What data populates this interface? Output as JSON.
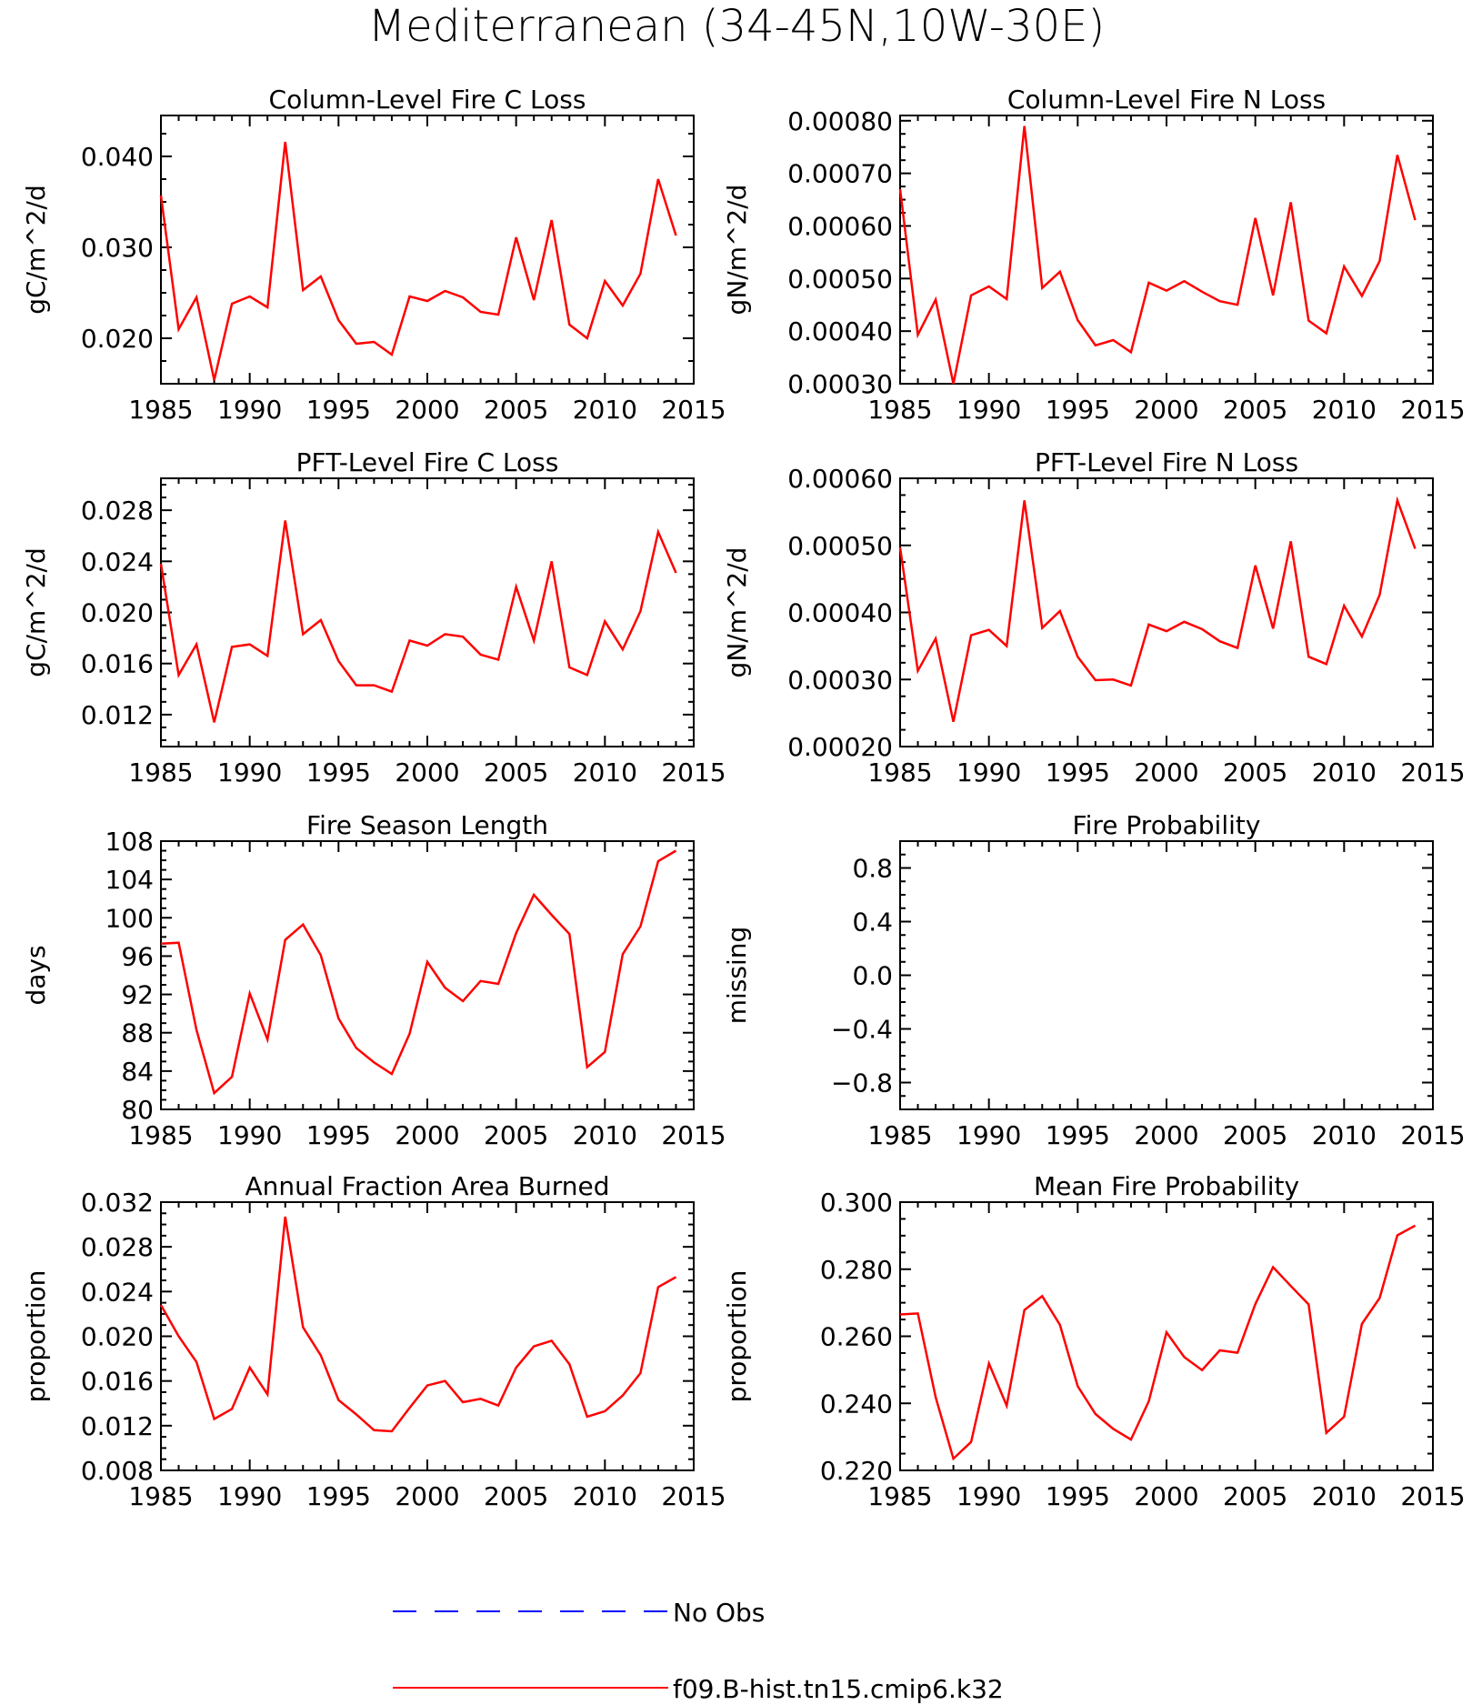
{
  "figure_title": "Mediterranean (34-45N,10W-30E)",
  "legend": [
    {
      "name": "No Obs",
      "color": "#0000ff",
      "dash": true
    },
    {
      "name": "f09.B-hist.tn15.cmip6.k32",
      "color": "#ff0000",
      "dash": false
    }
  ],
  "chart_data": [
    {
      "type": "line",
      "title": "Column-Level Fire C Loss",
      "ylabel": "gC/m^2/d",
      "xlim": [
        1985,
        2015
      ],
      "ylim": [
        0.015,
        0.0445
      ],
      "xticks": [
        1985,
        1990,
        1995,
        2000,
        2005,
        2010,
        2015
      ],
      "yticks": [
        0.02,
        0.03,
        0.04
      ],
      "ytick_labels": [
        "0.020",
        "0.030",
        "0.040"
      ],
      "series": [
        {
          "color": "#ff0000",
          "x": [
            1985,
            1986,
            1987,
            1988,
            1989,
            1990,
            1991,
            1992,
            1993,
            1994,
            1995,
            1996,
            1997,
            1998,
            1999,
            2000,
            2001,
            2002,
            2003,
            2004,
            2005,
            2006,
            2007,
            2008,
            2009,
            2010,
            2011,
            2012,
            2013,
            2014
          ],
          "values": [
            0.0357,
            0.021,
            0.0245,
            0.0154,
            0.0238,
            0.0246,
            0.0234,
            0.0416,
            0.0253,
            0.0268,
            0.022,
            0.0194,
            0.0196,
            0.0182,
            0.0246,
            0.0241,
            0.0252,
            0.0245,
            0.0229,
            0.0226,
            0.0311,
            0.0242,
            0.033,
            0.0215,
            0.02,
            0.0263,
            0.0236,
            0.0271,
            0.0375,
            0.0313
          ]
        }
      ]
    },
    {
      "type": "line",
      "title": "Column-Level Fire N Loss",
      "ylabel": "gN/m^2/d",
      "xlim": [
        1985,
        2015
      ],
      "ylim": [
        0.0003,
        0.00081
      ],
      "xticks": [
        1985,
        1990,
        1995,
        2000,
        2005,
        2010,
        2015
      ],
      "yticks": [
        0.0003,
        0.0004,
        0.0005,
        0.0006,
        0.0007,
        0.0008
      ],
      "ytick_labels": [
        "0.00030",
        "0.00040",
        "0.00050",
        "0.00060",
        "0.00070",
        "0.00080"
      ],
      "series": [
        {
          "color": "#ff0000",
          "x": [
            1985,
            1986,
            1987,
            1988,
            1989,
            1990,
            1991,
            1992,
            1993,
            1994,
            1995,
            1996,
            1997,
            1998,
            1999,
            2000,
            2001,
            2002,
            2003,
            2004,
            2005,
            2006,
            2007,
            2008,
            2009,
            2010,
            2011,
            2012,
            2013,
            2014
          ],
          "values": [
            0.00067,
            0.000393,
            0.00046,
            0.0003,
            0.000468,
            0.000485,
            0.000461,
            0.00079,
            0.000482,
            0.000513,
            0.000421,
            0.000373,
            0.000383,
            0.00036,
            0.000492,
            0.000477,
            0.000495,
            0.000475,
            0.000457,
            0.00045,
            0.000615,
            0.000468,
            0.000645,
            0.00042,
            0.000396,
            0.000523,
            0.000467,
            0.000533,
            0.000735,
            0.000611
          ]
        }
      ]
    },
    {
      "type": "line",
      "title": "PFT-Level Fire C Loss",
      "ylabel": "gC/m^2/d",
      "xlim": [
        1985,
        2015
      ],
      "ylim": [
        0.0095,
        0.0305
      ],
      "xticks": [
        1985,
        1990,
        1995,
        2000,
        2005,
        2010,
        2015
      ],
      "yticks": [
        0.012,
        0.016,
        0.02,
        0.024,
        0.028
      ],
      "ytick_labels": [
        "0.012",
        "0.016",
        "0.020",
        "0.024",
        "0.028"
      ],
      "series": [
        {
          "color": "#ff0000",
          "x": [
            1985,
            1986,
            1987,
            1988,
            1989,
            1990,
            1991,
            1992,
            1993,
            1994,
            1995,
            1996,
            1997,
            1998,
            1999,
            2000,
            2001,
            2002,
            2003,
            2004,
            2005,
            2006,
            2007,
            2008,
            2009,
            2010,
            2011,
            2012,
            2013,
            2014
          ],
          "values": [
            0.0238,
            0.0151,
            0.0175,
            0.0114,
            0.0173,
            0.0175,
            0.0166,
            0.0272,
            0.0183,
            0.0194,
            0.0162,
            0.0143,
            0.0143,
            0.0138,
            0.0178,
            0.0174,
            0.0183,
            0.0181,
            0.0167,
            0.0163,
            0.022,
            0.0178,
            0.024,
            0.0157,
            0.0151,
            0.0193,
            0.0171,
            0.0201,
            0.0263,
            0.0231
          ]
        }
      ]
    },
    {
      "type": "line",
      "title": "PFT-Level Fire N Loss",
      "ylabel": "gN/m^2/d",
      "xlim": [
        1985,
        2015
      ],
      "ylim": [
        0.0002,
        0.0006
      ],
      "xticks": [
        1985,
        1990,
        1995,
        2000,
        2005,
        2010,
        2015
      ],
      "yticks": [
        0.0002,
        0.0003,
        0.0004,
        0.0005,
        0.0006
      ],
      "ytick_labels": [
        "0.00020",
        "0.00030",
        "0.00040",
        "0.00050",
        "0.00060"
      ],
      "series": [
        {
          "color": "#ff0000",
          "x": [
            1985,
            1986,
            1987,
            1988,
            1989,
            1990,
            1991,
            1992,
            1993,
            1994,
            1995,
            1996,
            1997,
            1998,
            1999,
            2000,
            2001,
            2002,
            2003,
            2004,
            2005,
            2006,
            2007,
            2008,
            2009,
            2010,
            2011,
            2012,
            2013,
            2014
          ],
          "values": [
            0.000497,
            0.000313,
            0.000361,
            0.000237,
            0.000366,
            0.000374,
            0.00035,
            0.000567,
            0.000377,
            0.000402,
            0.000334,
            0.000299,
            0.0003,
            0.000291,
            0.000382,
            0.000372,
            0.000386,
            0.000375,
            0.000357,
            0.000347,
            0.00047,
            0.000376,
            0.000506,
            0.000334,
            0.000323,
            0.00041,
            0.000364,
            0.000426,
            0.000567,
            0.000495
          ]
        }
      ]
    },
    {
      "type": "line",
      "title": "Fire Season Length",
      "ylabel": "days",
      "xlim": [
        1985,
        2015
      ],
      "ylim": [
        80,
        108
      ],
      "xticks": [
        1985,
        1990,
        1995,
        2000,
        2005,
        2010,
        2015
      ],
      "yticks": [
        80,
        84,
        88,
        92,
        96,
        100,
        104,
        108
      ],
      "ytick_labels": [
        "80",
        "84",
        "88",
        "92",
        "96",
        "100",
        "104",
        "108"
      ],
      "series": [
        {
          "color": "#ff0000",
          "x": [
            1985,
            1986,
            1987,
            1988,
            1989,
            1990,
            1991,
            1992,
            1993,
            1994,
            1995,
            1996,
            1997,
            1998,
            1999,
            2000,
            2001,
            2002,
            2003,
            2004,
            2005,
            2006,
            2007,
            2008,
            2009,
            2010,
            2011,
            2012,
            2013,
            2014
          ],
          "values": [
            97.3,
            97.4,
            88.3,
            81.7,
            83.4,
            92.1,
            87.3,
            97.7,
            99.3,
            96.1,
            89.5,
            86.4,
            84.9,
            83.7,
            87.9,
            95.4,
            92.7,
            91.3,
            93.4,
            93.1,
            98.4,
            102.4,
            100.3,
            98.3,
            84.4,
            86.0,
            96.2,
            99.1,
            105.9,
            107.0
          ]
        }
      ]
    },
    {
      "type": "line",
      "title": "Fire Probability",
      "ylabel": "missing",
      "xlim": [
        1985,
        2015
      ],
      "ylim": [
        -1.0,
        1.0
      ],
      "xticks": [
        1985,
        1990,
        1995,
        2000,
        2005,
        2010,
        2015
      ],
      "yticks": [
        -0.8,
        -0.4,
        0.0,
        0.4,
        0.8
      ],
      "ytick_labels": [
        "-0.8",
        "-0.4",
        "0.0",
        "0.4",
        "0.8"
      ],
      "series": []
    },
    {
      "type": "line",
      "title": "Annual Fraction Area Burned",
      "ylabel": "proportion",
      "xlim": [
        1985,
        2015
      ],
      "ylim": [
        0.008,
        0.032
      ],
      "xticks": [
        1985,
        1990,
        1995,
        2000,
        2005,
        2010,
        2015
      ],
      "yticks": [
        0.008,
        0.012,
        0.016,
        0.02,
        0.024,
        0.028,
        0.032
      ],
      "ytick_labels": [
        "0.008",
        "0.012",
        "0.016",
        "0.020",
        "0.024",
        "0.028",
        "0.032"
      ],
      "series": [
        {
          "color": "#ff0000",
          "x": [
            1985,
            1986,
            1987,
            1988,
            1989,
            1990,
            1991,
            1992,
            1993,
            1994,
            1995,
            1996,
            1997,
            1998,
            1999,
            2000,
            2001,
            2002,
            2003,
            2004,
            2005,
            2006,
            2007,
            2008,
            2009,
            2010,
            2011,
            2012,
            2013,
            2014
          ],
          "values": [
            0.0228,
            0.02,
            0.0177,
            0.0126,
            0.0135,
            0.0172,
            0.0148,
            0.0307,
            0.0208,
            0.0183,
            0.0143,
            0.013,
            0.0116,
            0.0115,
            0.0136,
            0.0156,
            0.016,
            0.0141,
            0.0144,
            0.0138,
            0.0172,
            0.0191,
            0.0196,
            0.0175,
            0.0128,
            0.0133,
            0.0147,
            0.0167,
            0.0244,
            0.0253
          ]
        }
      ]
    },
    {
      "type": "line",
      "title": "Mean Fire Probability",
      "ylabel": "proportion",
      "xlim": [
        1985,
        2015
      ],
      "ylim": [
        0.22,
        0.3
      ],
      "xticks": [
        1985,
        1990,
        1995,
        2000,
        2005,
        2010,
        2015
      ],
      "yticks": [
        0.22,
        0.24,
        0.26,
        0.28,
        0.3
      ],
      "ytick_labels": [
        "0.220",
        "0.240",
        "0.260",
        "0.280",
        "0.300"
      ],
      "series": [
        {
          "color": "#ff0000",
          "x": [
            1985,
            1986,
            1987,
            1988,
            1989,
            1990,
            1991,
            1992,
            1993,
            1994,
            1995,
            1996,
            1997,
            1998,
            1999,
            2000,
            2001,
            2002,
            2003,
            2004,
            2005,
            2006,
            2007,
            2008,
            2009,
            2010,
            2011,
            2012,
            2013,
            2014
          ],
          "values": [
            0.2665,
            0.2668,
            0.2418,
            0.2235,
            0.2285,
            0.2519,
            0.2393,
            0.2678,
            0.272,
            0.2634,
            0.2451,
            0.2368,
            0.2324,
            0.2292,
            0.2406,
            0.2612,
            0.2538,
            0.2499,
            0.2558,
            0.2551,
            0.2696,
            0.2806,
            0.275,
            0.2695,
            0.2312,
            0.236,
            0.2637,
            0.2714,
            0.2901,
            0.293
          ]
        }
      ]
    }
  ]
}
